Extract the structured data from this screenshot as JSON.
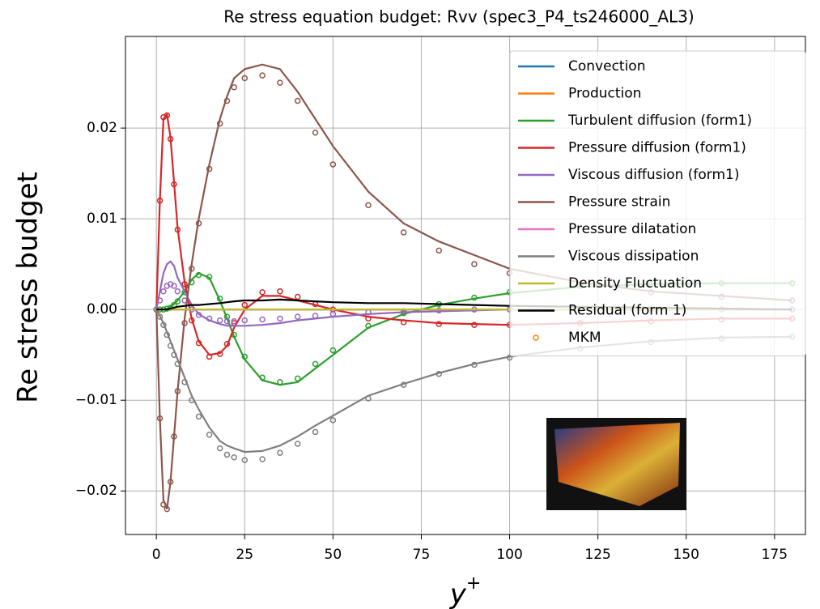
{
  "chart_data": {
    "type": "line",
    "title": "Re stress equation budget: Rvv (spec3_P4_ts246000_AL3)",
    "ylabel": "Re stress budget",
    "xlabel": "y",
    "xlabel_sup": "+",
    "x": [
      0,
      1,
      2,
      3,
      4,
      5,
      6,
      8,
      10,
      12,
      15,
      18,
      20,
      22,
      25,
      30,
      35,
      40,
      45,
      50,
      60,
      70,
      80,
      90,
      100,
      120,
      140,
      160,
      180
    ],
    "xlim": [
      -8.75,
      183.75
    ],
    "ylim": [
      -0.0248,
      0.0301
    ],
    "xticks": [
      0,
      25,
      50,
      75,
      100,
      125,
      150,
      175
    ],
    "yticks": [
      {
        "value": -0.02,
        "label": "−0.02"
      },
      {
        "value": -0.01,
        "label": "−0.01"
      },
      {
        "value": 0,
        "label": "0.00"
      },
      {
        "value": 0.01,
        "label": "0.01"
      },
      {
        "value": 0.02,
        "label": "0.02"
      }
    ],
    "grid": true,
    "legend": "upper right",
    "series": [
      {
        "name": "Convection",
        "color": "#1f77b4",
        "values": [
          0,
          0,
          0,
          0,
          0,
          0,
          0,
          0,
          0,
          0,
          0,
          0,
          0,
          0,
          0,
          0,
          0,
          0,
          0,
          0,
          0,
          0,
          0,
          0,
          0,
          0,
          0,
          0,
          0
        ]
      },
      {
        "name": "Production",
        "color": "#ff7f0e",
        "values": [
          0,
          0,
          0,
          0,
          0,
          0,
          0,
          0,
          0,
          0,
          0,
          0,
          0,
          0,
          0,
          0,
          0,
          0,
          0,
          0,
          0,
          0,
          0,
          0,
          0,
          0,
          0,
          0,
          0
        ]
      },
      {
        "name": "Turbulent diffusion (form1)",
        "color": "#2ca02c",
        "values": [
          0,
          0,
          0,
          0.0001,
          0.0003,
          0.0006,
          0.001,
          0.002,
          0.0033,
          0.004,
          0.0035,
          0.001,
          -0.001,
          -0.003,
          -0.0055,
          -0.0078,
          -0.0083,
          -0.008,
          -0.0065,
          -0.005,
          -0.002,
          -0.0005,
          0.0005,
          0.0012,
          0.0018,
          0.0025,
          0.0028,
          0.0029,
          0.0029
        ],
        "mkm_values": [
          0,
          0,
          0,
          0.0001,
          0.0002,
          0.0005,
          0.0009,
          0.0019,
          0.003,
          0.0038,
          0.0036,
          0.0012,
          -0.0008,
          -0.0028,
          -0.0052,
          -0.0075,
          -0.008,
          -0.0076,
          -0.006,
          -0.0045,
          -0.0018,
          -0.0004,
          0.0006,
          0.0013,
          0.0019,
          0.0026,
          0.0028,
          0.0029,
          0.0029
        ]
      },
      {
        "name": "Pressure diffusion (form1)",
        "color": "#d62728",
        "values": [
          0,
          0.012,
          0.021,
          0.0215,
          0.019,
          0.014,
          0.009,
          0.003,
          -0.001,
          -0.0035,
          -0.005,
          -0.0048,
          -0.004,
          -0.002,
          0,
          0.0015,
          0.0015,
          0.001,
          0.0005,
          0,
          -0.0008,
          -0.0012,
          -0.0015,
          -0.0016,
          -0.0017,
          -0.0015,
          -0.0012,
          -0.001,
          -0.001
        ],
        "mkm_values": [
          0,
          0.012,
          0.0212,
          0.0214,
          0.0188,
          0.0138,
          0.0088,
          0.0028,
          -0.0012,
          -0.0037,
          -0.0052,
          -0.0049,
          -0.0038,
          -0.0015,
          0.0005,
          0.0019,
          0.002,
          0.0014,
          0.0006,
          0,
          -0.001,
          -0.0014,
          -0.0016,
          -0.0017,
          -0.0017,
          -0.0015,
          -0.0013,
          -0.0011,
          -0.001
        ]
      },
      {
        "name": "Viscous diffusion (form1)",
        "color": "#9467bd",
        "values": [
          0,
          0.002,
          0.004,
          0.005,
          0.0053,
          0.0048,
          0.0035,
          0.002,
          0.0005,
          -0.0005,
          -0.0012,
          -0.0016,
          -0.0018,
          -0.0018,
          -0.0018,
          -0.0017,
          -0.0015,
          -0.0012,
          -0.001,
          -0.0008,
          -0.0005,
          -0.0003,
          -0.0002,
          -0.0001,
          0,
          0,
          0,
          0,
          0
        ],
        "mkm_values": [
          0,
          0.001,
          0.002,
          0.0026,
          0.0028,
          0.0026,
          0.002,
          0.001,
          0,
          -0.0006,
          -0.001,
          -0.0012,
          -0.0013,
          -0.0013,
          -0.0012,
          -0.0011,
          -0.001,
          -0.0008,
          -0.0007,
          -0.0005,
          -0.0003,
          -0.0002,
          -0.0001,
          0,
          0,
          0,
          0,
          0,
          0
        ]
      },
      {
        "name": "Pressure strain",
        "color": "#8c564b",
        "values": [
          0,
          -0.012,
          -0.021,
          -0.022,
          -0.019,
          -0.014,
          -0.009,
          -0.001,
          0.005,
          0.01,
          0.016,
          0.021,
          0.0235,
          0.0255,
          0.0265,
          0.027,
          0.0265,
          0.024,
          0.021,
          0.018,
          0.013,
          0.0095,
          0.0075,
          0.006,
          0.0045,
          0.003,
          0.002,
          0.0015,
          0.001
        ],
        "mkm_values": [
          0,
          -0.012,
          -0.0215,
          -0.022,
          -0.019,
          -0.014,
          -0.009,
          -0.0015,
          0.0045,
          0.0095,
          0.0155,
          0.0205,
          0.023,
          0.0245,
          0.0255,
          0.0258,
          0.025,
          0.023,
          0.0195,
          0.016,
          0.0115,
          0.0085,
          0.0065,
          0.005,
          0.004,
          0.0028,
          0.0019,
          0.0014,
          0.001
        ]
      },
      {
        "name": "Pressure dilatation",
        "color": "#e377c2",
        "values": [
          0,
          0,
          0,
          0,
          0,
          0,
          0,
          0,
          0,
          0,
          0,
          0,
          0,
          0,
          0,
          0,
          0,
          0,
          0,
          0,
          0,
          0,
          0,
          0,
          0,
          0,
          0,
          0,
          0
        ]
      },
      {
        "name": "Viscous dissipation",
        "color": "#7f7f7f",
        "values": [
          0,
          -0.0007,
          -0.0015,
          -0.0025,
          -0.0035,
          -0.0045,
          -0.0055,
          -0.0075,
          -0.0095,
          -0.011,
          -0.013,
          -0.0145,
          -0.015,
          -0.0153,
          -0.0157,
          -0.0156,
          -0.015,
          -0.014,
          -0.0128,
          -0.0117,
          -0.0095,
          -0.0082,
          -0.007,
          -0.006,
          -0.0052,
          -0.0042,
          -0.0035,
          -0.0031,
          -0.003
        ],
        "mkm_values": [
          0,
          -0.0008,
          -0.0017,
          -0.0028,
          -0.004,
          -0.005,
          -0.006,
          -0.008,
          -0.01,
          -0.0118,
          -0.0138,
          -0.0153,
          -0.016,
          -0.0163,
          -0.0166,
          -0.0165,
          -0.0158,
          -0.0148,
          -0.0135,
          -0.0122,
          -0.0098,
          -0.0083,
          -0.0071,
          -0.0061,
          -0.0053,
          -0.0043,
          -0.0036,
          -0.0032,
          -0.003
        ]
      },
      {
        "name": "Density Fluctuation",
        "color": "#bcbd22",
        "values": [
          0,
          0,
          0,
          0,
          0,
          0,
          0,
          0,
          0,
          0,
          0,
          0,
          0,
          0,
          0,
          0,
          0,
          0,
          0,
          0,
          0,
          0,
          0,
          0,
          0,
          0,
          0,
          0,
          0
        ]
      },
      {
        "name": "Residual (form 1)",
        "color": "#000000",
        "values": [
          0,
          0,
          0,
          0,
          0.0001,
          0.0002,
          0.0003,
          0.0004,
          0.0005,
          0.0005,
          0.0006,
          0.0007,
          0.0008,
          0.0009,
          0.001,
          0.001,
          0.0011,
          0.001,
          0.0009,
          0.0008,
          0.0007,
          0.0007,
          0.0006,
          0.0005,
          0.0004,
          0.0003,
          0.0002,
          0.0001,
          0
        ]
      }
    ],
    "mkm": {
      "name": "MKM",
      "color": "#ff7f0e"
    }
  }
}
